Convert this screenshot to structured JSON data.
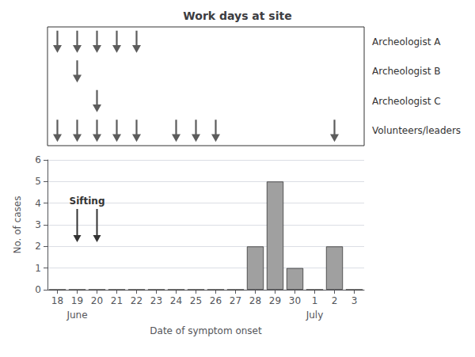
{
  "chart_data": [
    {
      "type": "timeline",
      "title": "Work days at site",
      "categories": [
        "18",
        "19",
        "20",
        "21",
        "22",
        "23",
        "24",
        "25",
        "26",
        "27",
        "28",
        "29",
        "30",
        "1",
        "2",
        "3"
      ],
      "series": [
        {
          "name": "Archeologist A",
          "x": [
            "18",
            "19",
            "20",
            "21",
            "22"
          ]
        },
        {
          "name": "Archeologist B",
          "x": [
            "19"
          ]
        },
        {
          "name": "Archeologist C",
          "x": [
            "20"
          ]
        },
        {
          "name": "Volunteers/leaders",
          "x": [
            "18",
            "19",
            "20",
            "21",
            "22",
            "24",
            "25",
            "26",
            "2"
          ]
        }
      ],
      "tick_labels": false
    },
    {
      "type": "bar",
      "xlabel": "Date of symptom onset",
      "ylabel": "No. of cases",
      "categories": [
        "18",
        "19",
        "20",
        "21",
        "22",
        "23",
        "24",
        "25",
        "26",
        "27",
        "28",
        "29",
        "30",
        "1",
        "2",
        "3"
      ],
      "values": [
        0,
        0,
        0,
        0,
        0,
        0,
        0,
        0,
        0,
        0,
        2,
        5,
        1,
        0,
        2,
        0
      ],
      "color": "#a0a0a0",
      "ylim": [
        0,
        6
      ],
      "yticks": [
        0,
        1,
        2,
        3,
        4,
        5,
        6
      ],
      "annotations": [
        {
          "text": "Sifting",
          "x": [
            "19",
            "20"
          ]
        }
      ],
      "month_labels": [
        {
          "text": "June",
          "x": "19"
        },
        {
          "text": "July",
          "x": "1"
        }
      ]
    }
  ]
}
